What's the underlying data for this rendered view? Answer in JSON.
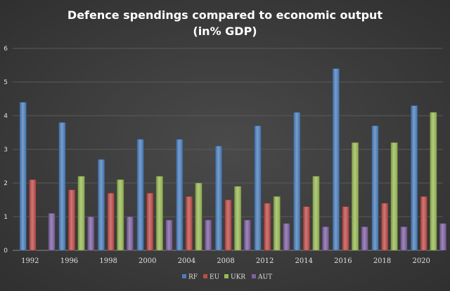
{
  "chart_data": {
    "type": "bar",
    "title": "Defence spendings compared to economic output",
    "subtitle": "(in% GDP)",
    "xlabel": "",
    "ylabel": "",
    "ylim": [
      0,
      6
    ],
    "yticks": [
      0,
      1,
      2,
      3,
      4,
      5,
      6
    ],
    "grid": true,
    "legend_position": "bottom",
    "categories": [
      "1992",
      "1996",
      "1998",
      "2000",
      "2004",
      "2008",
      "2012",
      "2014",
      "2016",
      "2018",
      "2020"
    ],
    "series": [
      {
        "name": "RF",
        "color": "#4a7ebb",
        "values": [
          4.4,
          3.8,
          2.7,
          3.3,
          3.3,
          3.1,
          3.7,
          4.1,
          5.4,
          3.7,
          4.3
        ]
      },
      {
        "name": "EU",
        "color": "#be4b48",
        "values": [
          2.1,
          1.8,
          1.7,
          1.7,
          1.6,
          1.5,
          1.4,
          1.3,
          1.3,
          1.4,
          1.6
        ]
      },
      {
        "name": "UKR",
        "color": "#98b954",
        "values": [
          null,
          2.2,
          2.1,
          2.2,
          2.0,
          1.9,
          1.6,
          2.2,
          3.2,
          3.2,
          4.1
        ]
      },
      {
        "name": "AUT",
        "color": "#7d60a0",
        "values": [
          1.1,
          1.0,
          1.0,
          0.9,
          0.9,
          0.9,
          0.8,
          0.7,
          0.7,
          0.7,
          0.8
        ]
      }
    ]
  }
}
